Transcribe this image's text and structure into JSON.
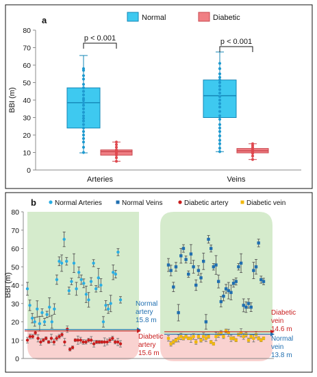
{
  "chart_data": [
    {
      "type": "box",
      "panel_label": "a",
      "ylabel": "BBI (m)",
      "ylim": [
        0,
        80
      ],
      "yticks": [
        0,
        10,
        20,
        30,
        40,
        50,
        60,
        70,
        80
      ],
      "categories": [
        "Arteries",
        "Veins"
      ],
      "legend": [
        {
          "name": "Normal",
          "color": "#3ec9f0"
        },
        {
          "name": "Diabetic",
          "color": "#f07f84"
        }
      ],
      "legend_position": "top-center",
      "grid": false,
      "series": [
        {
          "name": "Normal",
          "color": "#3ec9f0",
          "boxes": [
            {
              "category": "Arteries",
              "min": 9.8,
              "q1": 24,
              "median": 38.5,
              "q3": 47,
              "max": 65.5,
              "points": [
                10,
                13,
                16,
                18,
                20,
                22,
                24,
                26,
                28,
                29.5,
                31,
                33,
                35,
                37,
                38.5,
                40,
                41,
                43,
                45,
                47,
                49,
                52,
                54,
                57,
                58
              ]
            },
            {
              "category": "Veins",
              "min": 10.5,
              "q1": 30,
              "median": 42.5,
              "q3": 51.5,
              "max": 67.5,
              "points": [
                10.5,
                12.5,
                15,
                17,
                19.5,
                22,
                24,
                26,
                29,
                31,
                33.5,
                36,
                38,
                40,
                42,
                44,
                46,
                48,
                50,
                51.5,
                53,
                55,
                58,
                61
              ]
            }
          ]
        },
        {
          "name": "Diabetic",
          "color": "#f07f84",
          "boxes": [
            {
              "category": "Arteries",
              "min": 5,
              "q1": 8.5,
              "median": 10.5,
              "q3": 11.5,
              "max": 16,
              "points": [
                5,
                7,
                8.5,
                9.5,
                10,
                10.5,
                11,
                11.5,
                13,
                14.5,
                16
              ]
            },
            {
              "category": "Veins",
              "min": 6,
              "q1": 9.8,
              "median": 11,
              "q3": 12.3,
              "max": 15,
              "points": [
                6,
                8,
                9.5,
                10,
                10.5,
                11,
                11.5,
                12,
                13,
                14,
                15
              ]
            }
          ]
        }
      ],
      "annotations": [
        {
          "text": "p < 0.001",
          "category": "Arteries"
        },
        {
          "text": "p < 0.001",
          "category": "Veins"
        }
      ]
    },
    {
      "type": "scatter",
      "panel_label": "b",
      "ylabel": "BBI (m)",
      "ylim": [
        0,
        80
      ],
      "yticks": [
        0,
        10,
        20,
        30,
        40,
        50,
        60,
        70,
        80
      ],
      "grid": false,
      "legend_position": "top",
      "series": [
        {
          "name": "Normal Arteries",
          "color": "#29aee3",
          "values": [
            38,
            29,
            22,
            20,
            27,
            19,
            25,
            20,
            24,
            28,
            20,
            27,
            43,
            53,
            52,
            65,
            53,
            37,
            42,
            52,
            38,
            47,
            43,
            41,
            35,
            32,
            42,
            52,
            38,
            44,
            40,
            20,
            29,
            27,
            30,
            47,
            46,
            58,
            32
          ]
        },
        {
          "name": "Normal Veins",
          "color": "#1f6eb0",
          "values": [
            51,
            48,
            39,
            50,
            25,
            56,
            60,
            54,
            46,
            57,
            50,
            40,
            48,
            44,
            53,
            20,
            65,
            60,
            50,
            51,
            42,
            31,
            34,
            38,
            37,
            36,
            41,
            42,
            50,
            52,
            29,
            28,
            30,
            28,
            48,
            50,
            63,
            43,
            42
          ]
        },
        {
          "name": "Diabetic artery",
          "color": "#c81c1c",
          "values": [
            10,
            12,
            12,
            14,
            11,
            9,
            10,
            11,
            9,
            11,
            9,
            11,
            12,
            13,
            9,
            16,
            5,
            6,
            10,
            10,
            10,
            9,
            9,
            10,
            10,
            8,
            9,
            9,
            9,
            9,
            9,
            10,
            11,
            9,
            9,
            8
          ]
        },
        {
          "name": "Diabetic vein",
          "color": "#f1b80f",
          "values": [
            11,
            8,
            9,
            10,
            11,
            12,
            11,
            12,
            11,
            11,
            12,
            9,
            12,
            10,
            12,
            11,
            12,
            9,
            8,
            12,
            13,
            14,
            12,
            15,
            14,
            11,
            11,
            10,
            13,
            14,
            12,
            13,
            10,
            12,
            11,
            13,
            11,
            10,
            11
          ]
        }
      ],
      "reference_lines": [
        {
          "group": "artery",
          "label": [
            "Normal",
            "artery",
            "15.8 m"
          ],
          "value": 15.8,
          "color": "#1f6eb0"
        },
        {
          "group": "artery",
          "label": [
            "Diabetic",
            "artery",
            "15.6 m"
          ],
          "value": 15.6,
          "color": "#c81c1c"
        },
        {
          "group": "vein",
          "label": [
            "Diabetic",
            "vein",
            "14.6 m"
          ],
          "value": 14.6,
          "color": "#c81c1c"
        },
        {
          "group": "vein",
          "label": [
            "Normal",
            "vein",
            "13.8 m"
          ],
          "value": 13.8,
          "color": "#1f6eb0"
        }
      ]
    }
  ]
}
